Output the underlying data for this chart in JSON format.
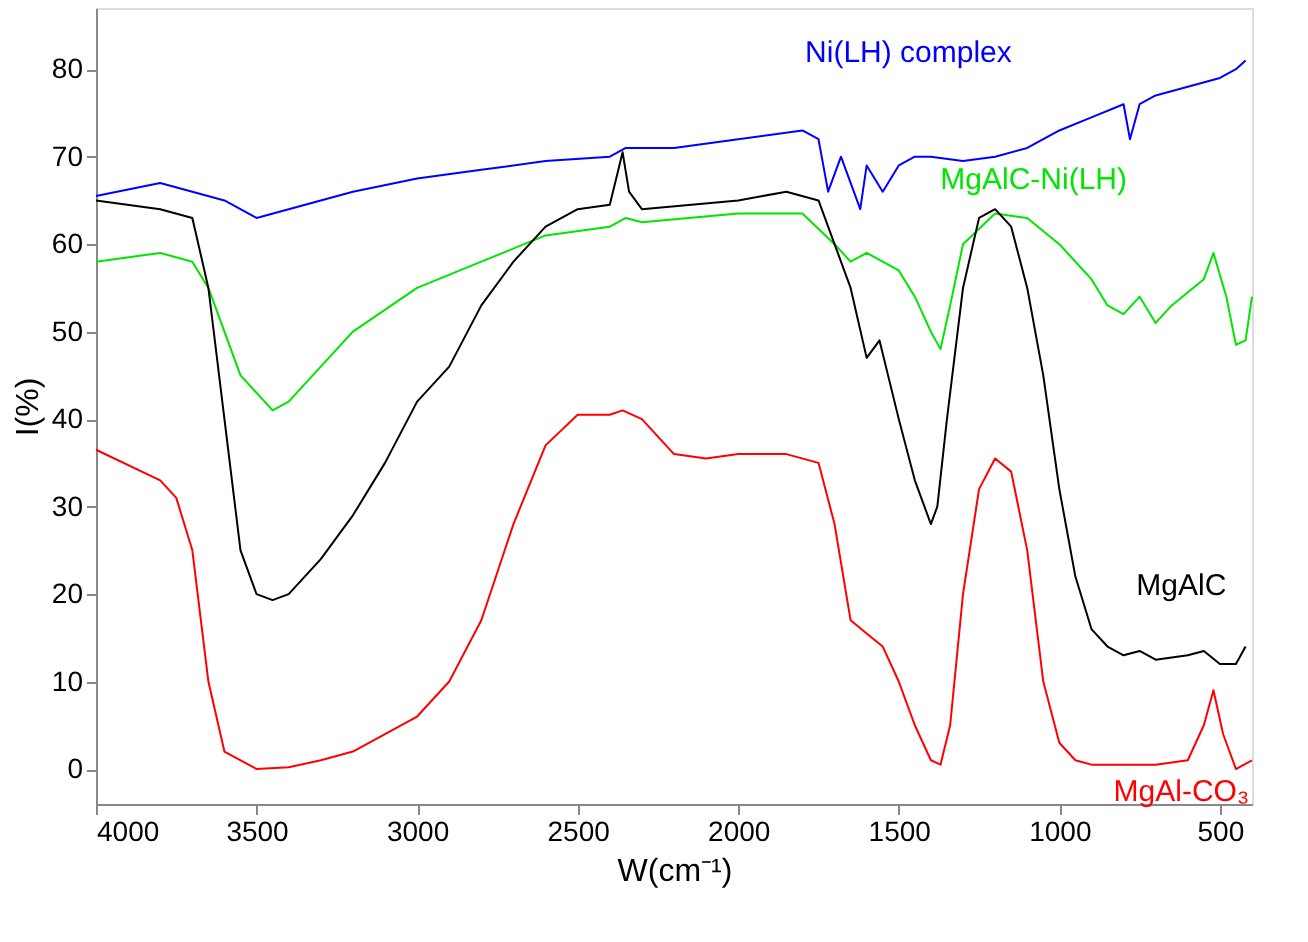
{
  "chart_data": {
    "type": "line",
    "xlabel": "W(cm⁻¹)",
    "ylabel": "I(%)",
    "xlim": [
      4000,
      400
    ],
    "xticks": [
      4000,
      3500,
      3000,
      2500,
      2000,
      1500,
      1000,
      500
    ],
    "ylim": [
      -4,
      87
    ],
    "yticks": [
      0,
      10,
      20,
      30,
      40,
      50,
      60,
      70,
      80
    ],
    "grid": false,
    "legend": false,
    "marker": "none",
    "line_style": "solid",
    "series": [
      {
        "name": "Ni(LH) complex",
        "color": "#0000ff",
        "x": [
          4000,
          3800,
          3700,
          3600,
          3500,
          3400,
          3200,
          3000,
          2800,
          2600,
          2400,
          2350,
          2200,
          2000,
          1800,
          1750,
          1720,
          1680,
          1620,
          1600,
          1550,
          1500,
          1450,
          1400,
          1300,
          1200,
          1100,
          1000,
          900,
          800,
          780,
          750,
          700,
          600,
          500,
          450,
          420
        ],
        "values": [
          65.5,
          67,
          66,
          65,
          63,
          64,
          66,
          67.5,
          68.5,
          69.5,
          70,
          71,
          71,
          72,
          73,
          72,
          66,
          70,
          64,
          69,
          66,
          69,
          70,
          70,
          69.5,
          70,
          71,
          73,
          74.5,
          76,
          72,
          76,
          77,
          78,
          79,
          80,
          81
        ]
      },
      {
        "name": "MgAlC-Ni(LH)",
        "color": "#00e600",
        "x": [
          4000,
          3800,
          3700,
          3650,
          3600,
          3550,
          3450,
          3400,
          3300,
          3200,
          3000,
          2800,
          2600,
          2400,
          2350,
          2300,
          2000,
          1800,
          1700,
          1650,
          1600,
          1500,
          1450,
          1400,
          1370,
          1340,
          1300,
          1200,
          1100,
          1000,
          900,
          850,
          800,
          750,
          700,
          650,
          550,
          520,
          480,
          450,
          420,
          400
        ],
        "values": [
          58,
          59,
          58,
          55,
          50,
          45,
          41,
          42,
          46,
          50,
          55,
          58,
          61,
          62,
          63,
          62.5,
          63.5,
          63.5,
          60,
          58,
          59,
          57,
          54,
          50,
          48,
          53,
          60,
          63.5,
          63,
          60,
          56,
          53,
          52,
          54,
          51,
          53,
          56,
          59,
          54,
          48.5,
          49,
          54
        ]
      },
      {
        "name": "MgAlC",
        "color": "#000000",
        "x": [
          4000,
          3800,
          3700,
          3650,
          3600,
          3550,
          3500,
          3450,
          3400,
          3300,
          3200,
          3100,
          3000,
          2900,
          2800,
          2700,
          2600,
          2500,
          2400,
          2360,
          2340,
          2300,
          2000,
          1850,
          1750,
          1700,
          1650,
          1600,
          1560,
          1500,
          1450,
          1400,
          1380,
          1350,
          1300,
          1250,
          1200,
          1150,
          1100,
          1050,
          1000,
          950,
          900,
          850,
          800,
          750,
          700,
          600,
          550,
          500,
          450,
          420
        ],
        "values": [
          65,
          64,
          63,
          55,
          40,
          25,
          20,
          19.3,
          20,
          24,
          29,
          35,
          42,
          46,
          53,
          58,
          62,
          64,
          64.5,
          70.5,
          66,
          64,
          65,
          66,
          65,
          60,
          55,
          47,
          49,
          40,
          33,
          28,
          30,
          40,
          55,
          63,
          64,
          62,
          55,
          45,
          32,
          22,
          16,
          14,
          13,
          13.5,
          12.5,
          13,
          13.5,
          12,
          12,
          14
        ]
      },
      {
        "name": "MgAl-CO₃",
        "color": "#ff0000",
        "x": [
          4000,
          3800,
          3750,
          3700,
          3650,
          3600,
          3500,
          3400,
          3300,
          3200,
          3100,
          3000,
          2900,
          2800,
          2700,
          2600,
          2500,
          2400,
          2360,
          2300,
          2200,
          2100,
          2000,
          1850,
          1750,
          1700,
          1650,
          1600,
          1550,
          1500,
          1450,
          1400,
          1370,
          1340,
          1300,
          1250,
          1200,
          1150,
          1100,
          1050,
          1000,
          950,
          900,
          800,
          700,
          600,
          550,
          520,
          490,
          450,
          400
        ],
        "values": [
          36.5,
          33,
          31,
          25,
          10,
          2,
          0,
          0.2,
          1,
          2,
          4,
          6,
          10,
          17,
          28,
          37,
          40.5,
          40.5,
          41,
          40,
          36,
          35.5,
          36,
          36,
          35,
          28,
          17,
          15.5,
          14,
          10,
          5,
          1,
          0.5,
          5,
          20,
          32,
          35.5,
          34,
          25,
          10,
          3,
          1,
          0.5,
          0.5,
          0.5,
          1,
          5,
          9,
          4,
          0,
          1
        ]
      }
    ]
  }
}
